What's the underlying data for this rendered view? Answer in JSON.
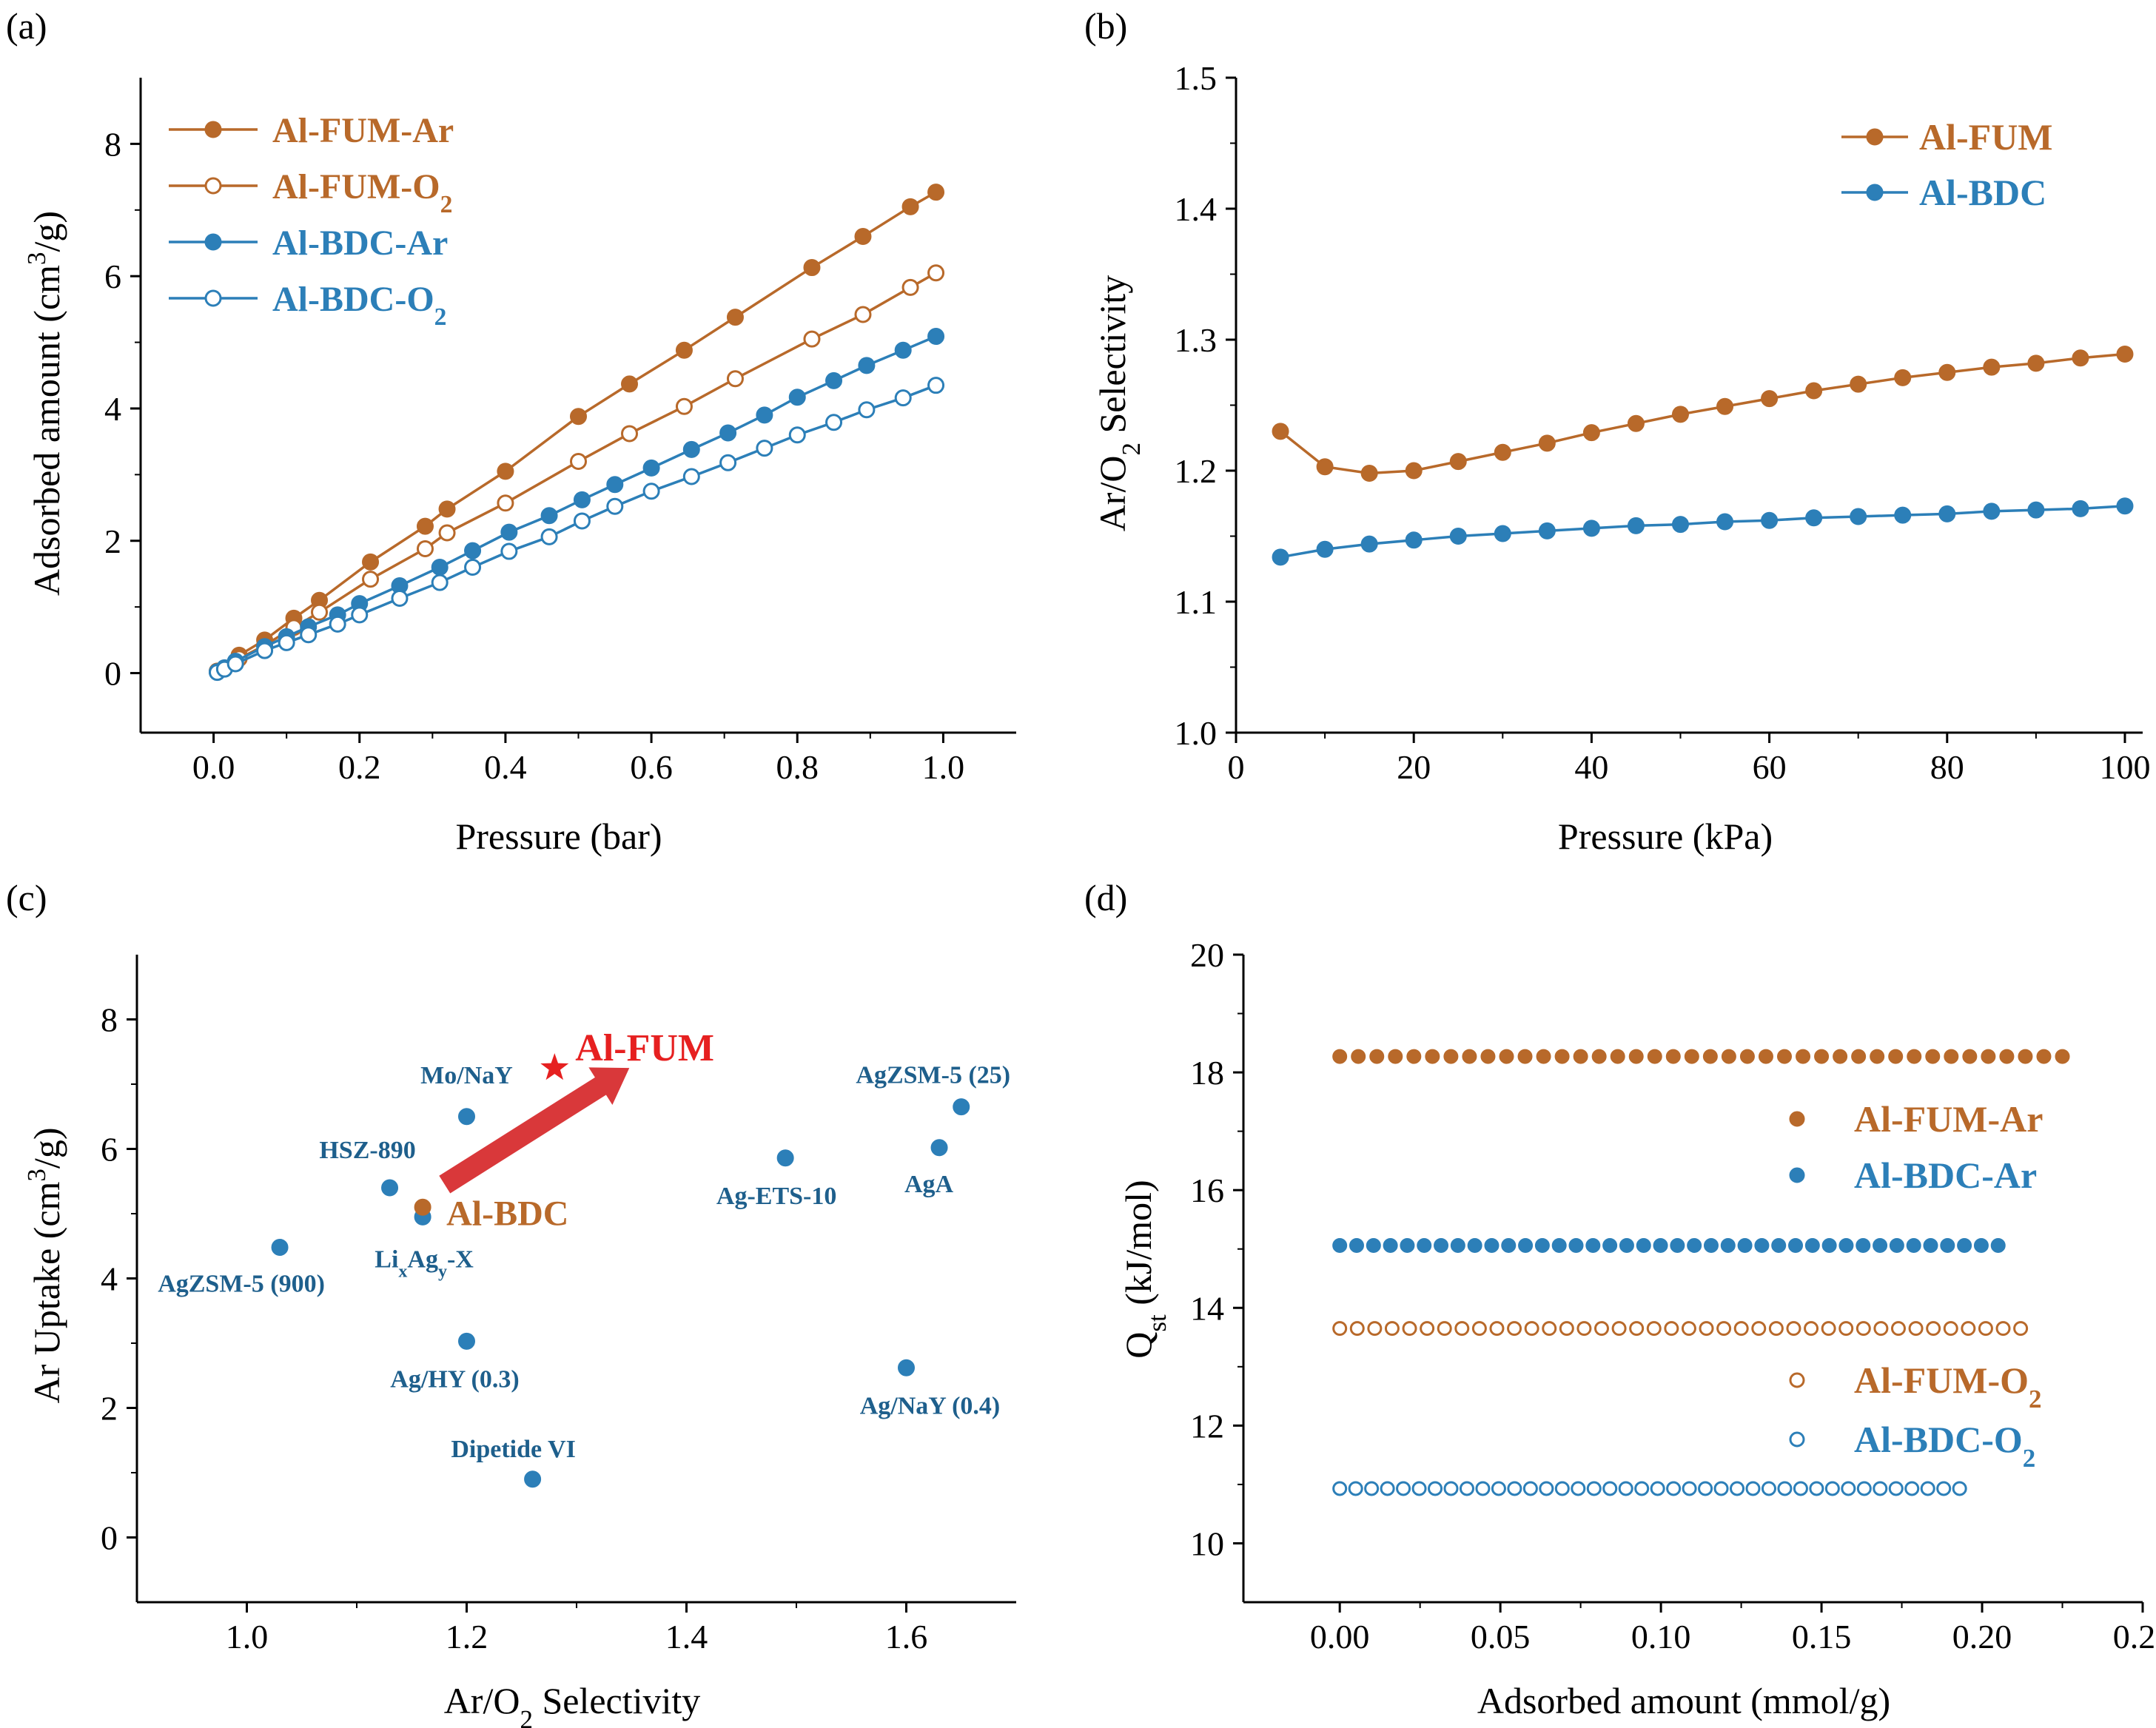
{
  "colors": {
    "fum": "#b8692a",
    "bdc": "#2c7fb8",
    "star": "#e62020",
    "arrow": "#d9383a",
    "axis": "#000000"
  },
  "panel_labels": [
    "(a)",
    "(b)",
    "(c)",
    "(d)"
  ],
  "chart_data": [
    {
      "panel": "(a)",
      "type": "line",
      "xlabel": "Pressure (bar)",
      "ylabel": "Adsorbed amount (cm³/g)",
      "xlim": [
        -0.1,
        1.1
      ],
      "ylim": [
        -0.9,
        9.0
      ],
      "xticks": [
        0.0,
        0.2,
        0.4,
        0.6,
        0.8,
        1.0
      ],
      "xtick_labels": [
        "0.0",
        "0.2",
        "0.4",
        "0.6",
        "0.8",
        "1.0"
      ],
      "yticks": [
        0,
        2,
        4,
        6,
        8
      ],
      "ytick_labels": [
        "0",
        "2",
        "4",
        "6",
        "8"
      ],
      "legend_position": "top-left",
      "series": [
        {
          "name": "Al-FUM-Ar",
          "color_key": "fum",
          "filled": true,
          "x": [
            0.005,
            0.035,
            0.07,
            0.11,
            0.145,
            0.215,
            0.29,
            0.32,
            0.4,
            0.5,
            0.57,
            0.645,
            0.715,
            0.82,
            0.89,
            0.955,
            0.99
          ],
          "y": [
            0.03,
            0.27,
            0.5,
            0.83,
            1.1,
            1.68,
            2.22,
            2.48,
            3.05,
            3.88,
            4.37,
            4.88,
            5.38,
            6.13,
            6.6,
            7.05,
            7.27
          ]
        },
        {
          "name": "Al-FUM-O₂",
          "color_key": "fum",
          "filled": false,
          "x": [
            0.005,
            0.035,
            0.07,
            0.11,
            0.145,
            0.215,
            0.29,
            0.32,
            0.4,
            0.5,
            0.57,
            0.645,
            0.715,
            0.82,
            0.89,
            0.955,
            0.99
          ],
          "y": [
            0.02,
            0.22,
            0.42,
            0.69,
            0.92,
            1.42,
            1.88,
            2.12,
            2.57,
            3.2,
            3.62,
            4.03,
            4.45,
            5.05,
            5.42,
            5.83,
            6.05
          ]
        },
        {
          "name": "Al-BDC-Ar",
          "color_key": "bdc",
          "filled": true,
          "x": [
            0.005,
            0.015,
            0.03,
            0.07,
            0.1,
            0.13,
            0.17,
            0.2,
            0.255,
            0.31,
            0.355,
            0.405,
            0.46,
            0.505,
            0.55,
            0.6,
            0.655,
            0.705,
            0.755,
            0.8,
            0.85,
            0.895,
            0.945,
            0.99
          ],
          "y": [
            0.02,
            0.08,
            0.18,
            0.4,
            0.55,
            0.7,
            0.88,
            1.05,
            1.32,
            1.6,
            1.85,
            2.13,
            2.38,
            2.62,
            2.85,
            3.1,
            3.38,
            3.63,
            3.9,
            4.17,
            4.42,
            4.65,
            4.88,
            5.09
          ]
        },
        {
          "name": "Al-BDC-O₂",
          "color_key": "bdc",
          "filled": false,
          "x": [
            0.005,
            0.015,
            0.03,
            0.07,
            0.1,
            0.13,
            0.17,
            0.2,
            0.255,
            0.31,
            0.355,
            0.405,
            0.46,
            0.505,
            0.55,
            0.6,
            0.655,
            0.705,
            0.755,
            0.8,
            0.85,
            0.895,
            0.945,
            0.99
          ],
          "y": [
            0.01,
            0.06,
            0.14,
            0.34,
            0.46,
            0.58,
            0.74,
            0.88,
            1.13,
            1.37,
            1.6,
            1.84,
            2.06,
            2.3,
            2.52,
            2.75,
            2.97,
            3.18,
            3.4,
            3.6,
            3.79,
            3.98,
            4.16,
            4.35
          ]
        }
      ]
    },
    {
      "panel": "(b)",
      "type": "line",
      "xlabel": "Pressure (kPa)",
      "ylabel": "Ar/O₂ Selectivity",
      "xlim": [
        0,
        102
      ],
      "ylim": [
        1.0,
        1.5
      ],
      "xticks": [
        0,
        20,
        40,
        60,
        80,
        100
      ],
      "xtick_labels": [
        "0",
        "20",
        "40",
        "60",
        "80",
        "100"
      ],
      "yticks": [
        1.0,
        1.1,
        1.2,
        1.3,
        1.4,
        1.5
      ],
      "ytick_labels": [
        "1.0",
        "1.1",
        "1.2",
        "1.3",
        "1.4",
        "1.5"
      ],
      "legend_position": "top-right",
      "series": [
        {
          "name": "Al-FUM",
          "color_key": "fum",
          "filled": true,
          "x": [
            5,
            10,
            15,
            20,
            25,
            30,
            35,
            40,
            45,
            50,
            55,
            60,
            65,
            70,
            75,
            80,
            85,
            90,
            95,
            100
          ],
          "y": [
            1.23,
            1.203,
            1.198,
            1.2,
            1.207,
            1.214,
            1.221,
            1.229,
            1.236,
            1.243,
            1.249,
            1.255,
            1.261,
            1.266,
            1.271,
            1.275,
            1.279,
            1.282,
            1.286,
            1.289
          ]
        },
        {
          "name": "Al-BDC",
          "color_key": "bdc",
          "filled": true,
          "x": [
            5,
            10,
            15,
            20,
            25,
            30,
            35,
            40,
            45,
            50,
            55,
            60,
            65,
            70,
            75,
            80,
            85,
            90,
            95,
            100
          ],
          "y": [
            1.134,
            1.14,
            1.144,
            1.147,
            1.15,
            1.152,
            1.154,
            1.156,
            1.158,
            1.159,
            1.161,
            1.162,
            1.164,
            1.165,
            1.166,
            1.167,
            1.169,
            1.17,
            1.171,
            1.173
          ]
        }
      ]
    },
    {
      "panel": "(c)",
      "type": "scatter",
      "xlabel": "Ar/O₂ Selectivity",
      "ylabel": "Ar Uptake (cm³/g)",
      "xlim": [
        0.9,
        1.7
      ],
      "ylim": [
        -1.0,
        9.0
      ],
      "xticks": [
        1.0,
        1.2,
        1.4,
        1.6
      ],
      "xtick_labels": [
        "1.0",
        "1.2",
        "1.4",
        "1.6"
      ],
      "yticks": [
        0,
        2,
        4,
        6,
        8
      ],
      "ytick_labels": [
        "0",
        "2",
        "4",
        "6",
        "8"
      ],
      "points": [
        {
          "label": "Mo/NaY",
          "x": 1.2,
          "y": 6.5
        },
        {
          "label": "HSZ-890",
          "x": 1.13,
          "y": 5.4
        },
        {
          "label": "LixAgy-X",
          "x": 1.16,
          "y": 4.95
        },
        {
          "label": "AgZSM-5 (900)",
          "x": 1.03,
          "y": 4.48
        },
        {
          "label": "Ag/HY (0.3)",
          "x": 1.2,
          "y": 3.03
        },
        {
          "label": "Dipetide VI",
          "x": 1.26,
          "y": 0.9
        },
        {
          "label": "Ag-ETS-10",
          "x": 1.49,
          "y": 5.86
        },
        {
          "label": "AgA",
          "x": 1.63,
          "y": 6.02
        },
        {
          "label": "AgZSM-5 (25)",
          "x": 1.65,
          "y": 6.65
        },
        {
          "label": "Ag/NaY (0.4)",
          "x": 1.6,
          "y": 2.62
        }
      ],
      "highlight_bdc": {
        "label": "Al-BDC",
        "x": 1.16,
        "y": 5.1
      },
      "highlight_fum": {
        "label": "Al-FUM",
        "x": 1.28,
        "y": 7.25
      }
    },
    {
      "panel": "(d)",
      "type": "scatter",
      "xlabel": "Adsorbed amount (mmol/g)",
      "ylabel": "Qst (kJ/mol)",
      "xlim": [
        -0.03,
        0.25
      ],
      "ylim": [
        9.0,
        20.0
      ],
      "xticks": [
        0.0,
        0.05,
        0.1,
        0.15,
        0.2,
        0.25
      ],
      "xtick_labels": [
        "0.00",
        "0.05",
        "0.10",
        "0.15",
        "0.20",
        "0.25"
      ],
      "yticks": [
        10,
        12,
        14,
        16,
        18,
        20
      ],
      "ytick_labels": [
        "10",
        "12",
        "14",
        "16",
        "18",
        "20"
      ],
      "series": [
        {
          "name": "Al-FUM-Ar",
          "color_key": "fum",
          "filled": true,
          "qst": 18.27,
          "x_start": 0.0,
          "x_end": 0.225,
          "count": 40
        },
        {
          "name": "Al-BDC-Ar",
          "color_key": "bdc",
          "filled": true,
          "qst": 15.06,
          "x_start": 0.0,
          "x_end": 0.205,
          "count": 40
        },
        {
          "name": "Al-FUM-O₂",
          "color_key": "fum",
          "filled": false,
          "qst": 13.65,
          "x_start": 0.0,
          "x_end": 0.212,
          "count": 40
        },
        {
          "name": "Al-BDC-O₂",
          "color_key": "bdc",
          "filled": false,
          "qst": 10.93,
          "x_start": 0.0,
          "x_end": 0.193,
          "count": 40
        }
      ]
    }
  ]
}
